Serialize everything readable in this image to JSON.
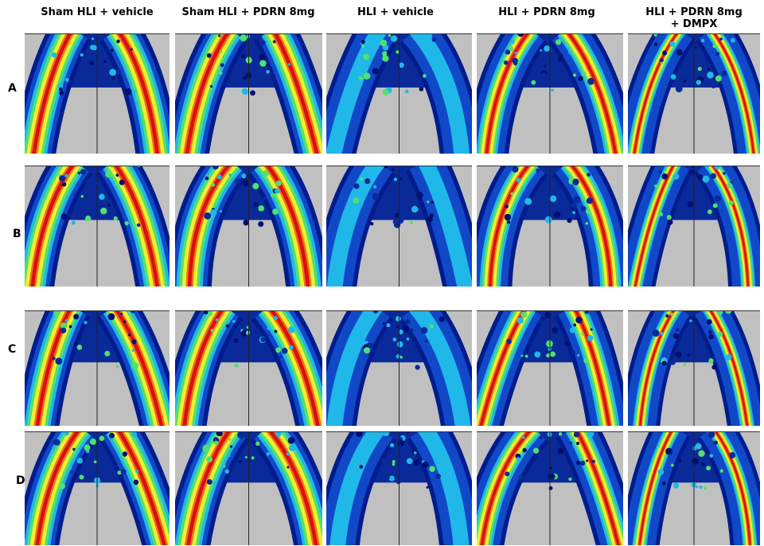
{
  "columns": [
    "Sham HLI + vehicle",
    "Sham HLI + PDRN 8mg",
    "HLI + vehicle",
    "HLI + PDRN 8mg",
    "HLI + PDRN 8mg + DMPX"
  ],
  "rows": [
    "A",
    "B",
    "C",
    "D"
  ]
}
